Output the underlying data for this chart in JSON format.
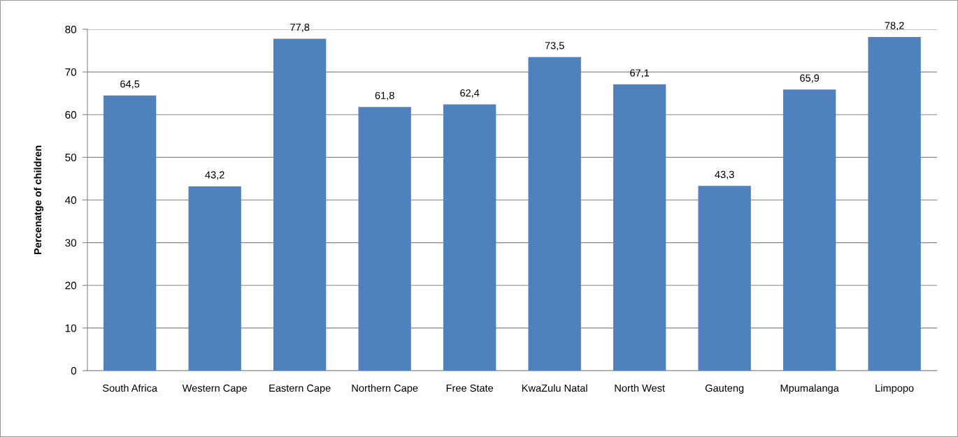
{
  "chart_data": {
    "type": "bar",
    "ylabel": "Percenatge of children",
    "categories": [
      "South Africa",
      "Western Cape",
      "Eastern Cape",
      "Northern Cape",
      "Free State",
      "KwaZulu Natal",
      "North West",
      "Gauteng",
      "Mpumalanga",
      "Limpopo"
    ],
    "values": [
      64.5,
      43.2,
      77.8,
      61.8,
      62.4,
      73.5,
      67.1,
      43.3,
      65.9,
      78.2
    ],
    "value_labels": [
      "64,5",
      "43,2",
      "77,8",
      "61,8",
      "62,4",
      "73,5",
      "67,1",
      "43,3",
      "65,9",
      "78,2"
    ],
    "color": "#4f81bd",
    "ylim": [
      0,
      80
    ],
    "yticks": [
      0,
      10,
      20,
      30,
      40,
      50,
      60,
      70,
      80
    ],
    "grid": "y",
    "legend": false
  }
}
